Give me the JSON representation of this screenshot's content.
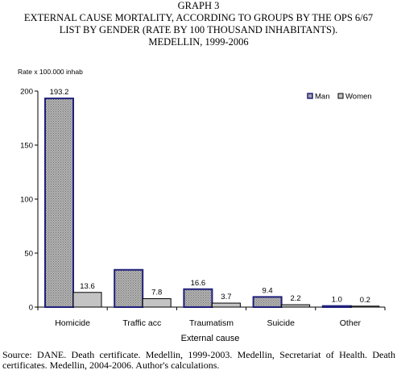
{
  "title_lines": [
    "GRAPH 3",
    "EXTERNAL CAUSE MORTALITY, ACCORDING TO GROUPS BY THE OPS 6/67",
    "LIST BY GENDER (RATE BY 100 THOUSAND INHABITANTS).",
    "MEDELLIN, 1999-2006"
  ],
  "source": "Source: DANE. Death certificate. Medellin, 1999-2003. Medellin, Secretariat of Health. Death certificates. Medellin, 2004-2006. Author's calculations.",
  "chart_data": {
    "type": "bar",
    "title": "GRAPH 3 EXTERNAL CAUSE MORTALITY, ACCORDING TO GROUPS BY THE OPS 6/67 LIST BY GENDER (RATE BY 100 THOUSAND INHABITANTS). MEDELLIN, 1999-2006",
    "ylabel": "Rate x 100.000 inhab",
    "xlabel": "External cause",
    "categories": [
      "Homicide",
      "Traffic acc",
      "Traumatism",
      "Suicide",
      "Other"
    ],
    "series": [
      {
        "name": "Man",
        "values": [
          193.2,
          34.5,
          16.6,
          9.4,
          1.0
        ],
        "labels": [
          "193.2",
          "",
          "16.6",
          "9.4",
          "1.0"
        ],
        "color": "#a6a6a6",
        "border": "#1f1f7a"
      },
      {
        "name": "Women",
        "values": [
          13.6,
          7.8,
          3.7,
          2.2,
          0.2
        ],
        "labels": [
          "13.6",
          "7.8",
          "3.7",
          "2.2",
          "0.2"
        ],
        "color": "#c4c4c4",
        "border": "#000000"
      }
    ],
    "ylim": [
      0,
      200
    ],
    "yticks": [
      "0",
      "50",
      "100",
      "150",
      "200"
    ],
    "legend_position": "top-right",
    "grid": false
  }
}
